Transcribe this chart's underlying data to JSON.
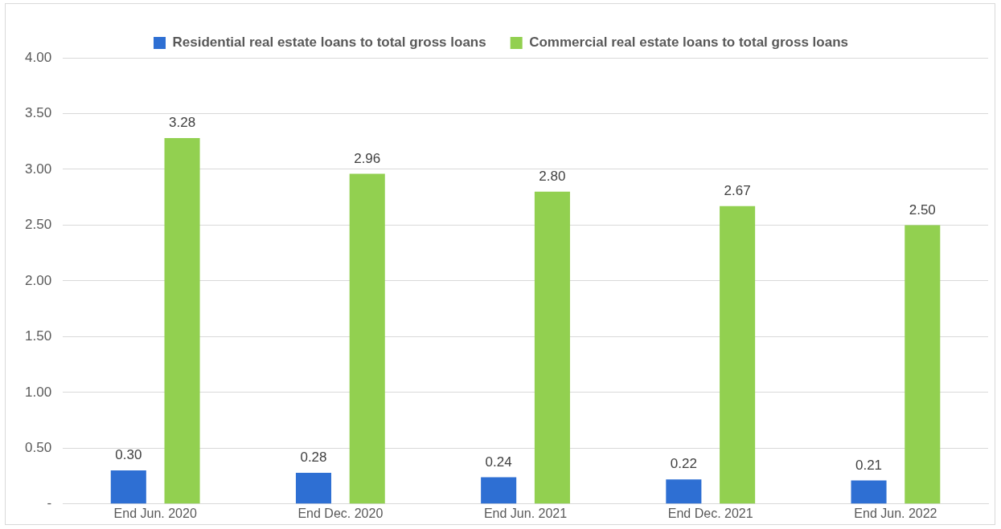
{
  "chart_data": {
    "type": "bar",
    "categories": [
      "End Jun. 2020",
      "End Dec. 2020",
      "End Jun. 2021",
      "End Dec. 2021",
      "End Jun. 2022"
    ],
    "series": [
      {
        "name": "Residential real estate loans to total gross loans",
        "color": "#2e6fd3",
        "values": [
          0.3,
          0.28,
          0.24,
          0.22,
          0.21
        ],
        "value_labels": [
          "0.30",
          "0.28",
          "0.24",
          "0.22",
          "0.21"
        ]
      },
      {
        "name": "Commercial real estate loans to total gross loans",
        "color": "#92d050",
        "values": [
          3.28,
          2.96,
          2.8,
          2.67,
          2.5
        ],
        "value_labels": [
          "3.28",
          "2.96",
          "2.80",
          "2.67",
          "2.50"
        ]
      }
    ],
    "ylim": [
      0,
      4
    ],
    "yticks": [
      {
        "value": 0,
        "label": "-"
      },
      {
        "value": 0.5,
        "label": "0.50"
      },
      {
        "value": 1,
        "label": "1.00"
      },
      {
        "value": 1.5,
        "label": "1.50"
      },
      {
        "value": 2,
        "label": "2.00"
      },
      {
        "value": 2.5,
        "label": "2.50"
      },
      {
        "value": 3,
        "label": "3.00"
      },
      {
        "value": 3.5,
        "label": "3.50"
      },
      {
        "value": 4,
        "label": "4.00"
      }
    ],
    "grid": "y",
    "legend": "top"
  }
}
